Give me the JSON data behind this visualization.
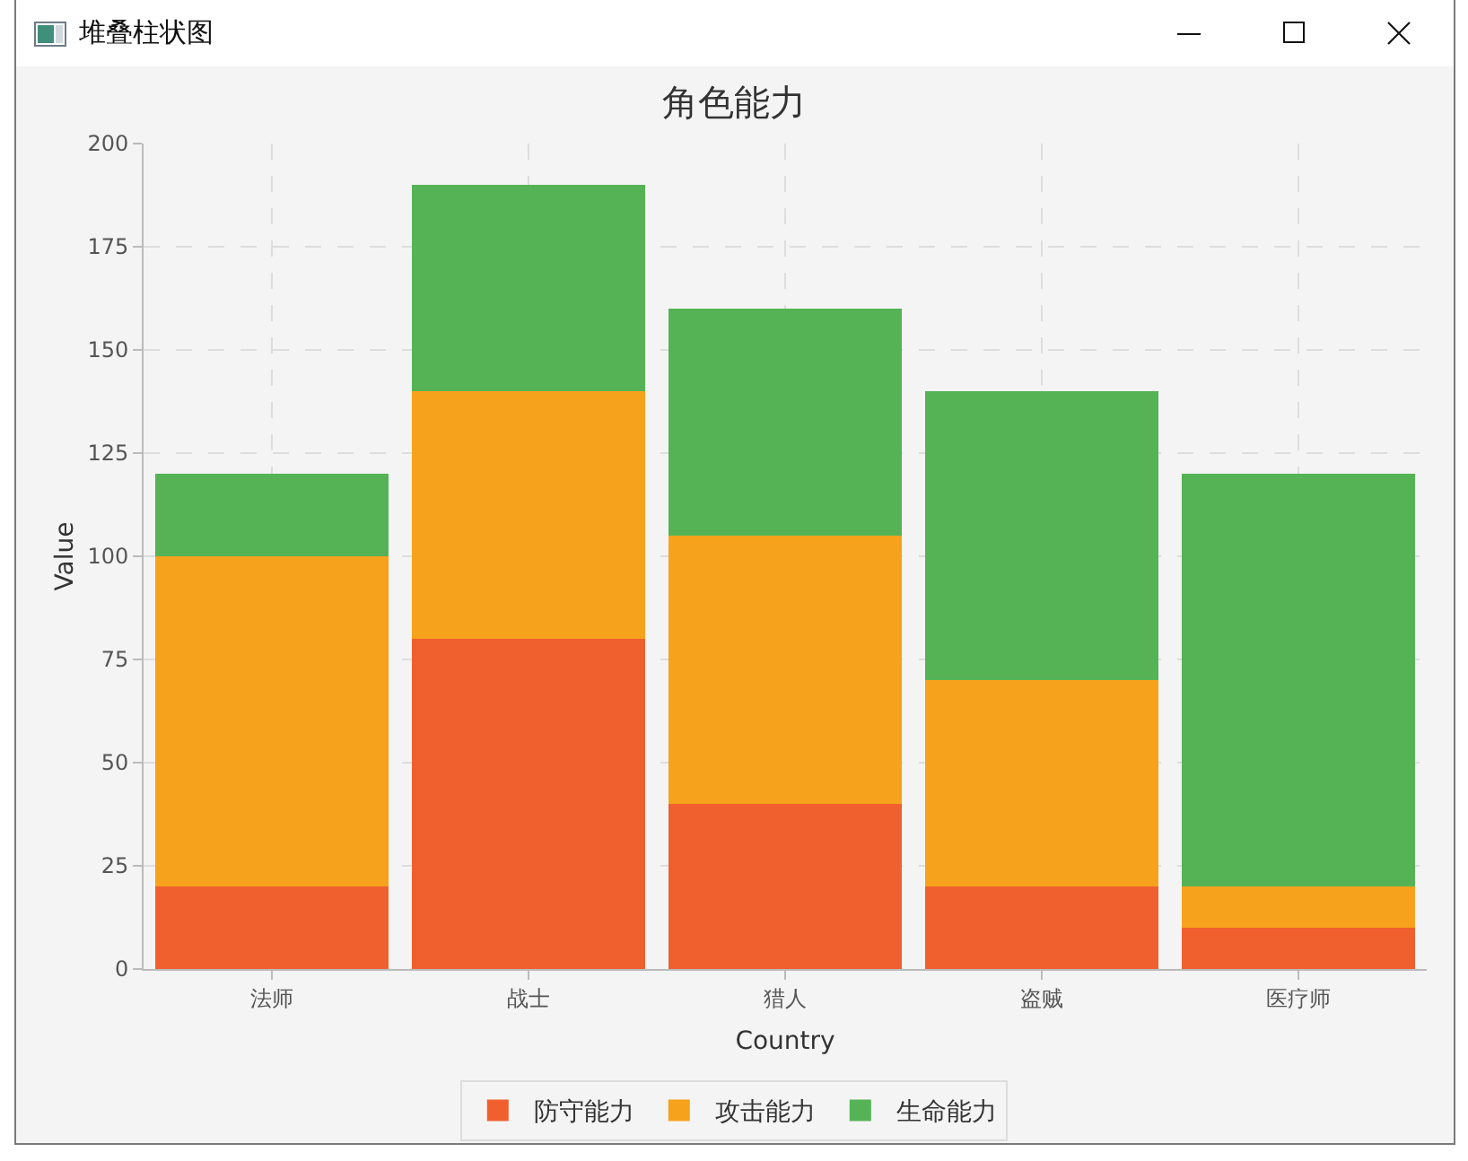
{
  "chart_data": {
    "type": "bar",
    "title": "角色能力",
    "xlabel": "Country",
    "ylabel": "Value",
    "annotations": [
      "堆叠柱状图"
    ],
    "categories": [
      "法师",
      "战士",
      "猎人",
      "盗贼",
      "医疗师"
    ],
    "series": [
      {
        "name": "防守能力",
        "color": "#f0602f",
        "values": [
          20,
          80,
          40,
          20,
          10
        ]
      },
      {
        "name": "攻击能力",
        "color": "#f7a21c",
        "values": [
          80,
          60,
          65,
          50,
          10
        ]
      },
      {
        "name": "生命能力",
        "color": "#55b356",
        "values": [
          20,
          50,
          55,
          70,
          100
        ]
      }
    ],
    "stacked": true,
    "ylim": [
      0,
      200
    ],
    "yticks": [
      0,
      25,
      50,
      75,
      100,
      125,
      150,
      175,
      200
    ],
    "grid": true,
    "legend": "bottom"
  }
}
